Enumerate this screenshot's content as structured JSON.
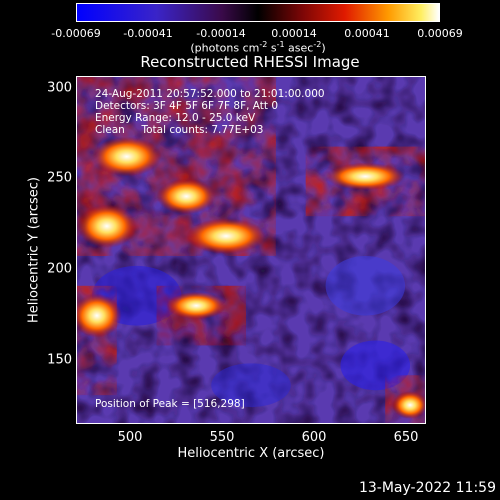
{
  "colorbar": {
    "ticks": [
      "-0.00069",
      "-0.00041",
      "-0.00014",
      "0.00014",
      "0.00041",
      "0.00069"
    ],
    "unit_main": "(photons cm",
    "unit_exp1": "-2",
    "unit_mid1": " s",
    "unit_exp2": "-1",
    "unit_mid2": " asec",
    "unit_exp3": "-2",
    "unit_end": ")"
  },
  "chart_data": {
    "type": "heatmap",
    "title": "Reconstructed RHESSI Image",
    "xlabel": "Heliocentric X (arcsec)",
    "ylabel": "Heliocentric Y (arcsec)",
    "xlim": [
      468,
      660
    ],
    "ylim": [
      110,
      307
    ],
    "x_ticks": [
      "500",
      "550",
      "600",
      "650"
    ],
    "y_ticks": [
      "150",
      "200",
      "250",
      "300"
    ],
    "colormap": "blue-purple-red-yellow-white",
    "clim": [
      -0.00069,
      0.00069
    ],
    "annotations": {
      "time": "24-Aug-2011 20:57:52.000 to 21:01:00.000",
      "detectors": "Detectors: 3F 4F 5F 6F 7F 8F, Att 0",
      "energy": "Energy Range: 12.0 - 25.0 keV",
      "clean": "Clean     Total counts: 7.77E+03",
      "peak": "Position of Peak = [516,298]"
    }
  },
  "footer": {
    "date": "13-May-2022 11:59"
  }
}
